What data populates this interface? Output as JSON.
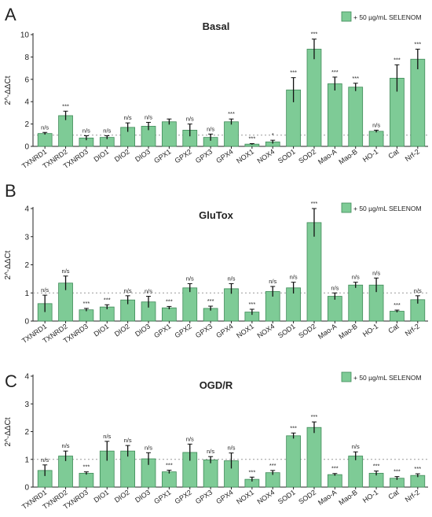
{
  "figure": {
    "legend_label": "+ 50 µg/mL SELENOM",
    "ylabel": "2^-ΔΔCt",
    "bar_color": "#7ecb96",
    "bar_edge": "#3f8a58",
    "reference_line": 1
  },
  "chart_data": [
    {
      "type": "bar",
      "panel_label": "A",
      "title": "Basal",
      "ylabel": "2^-ΔΔCt",
      "ylim": [
        0,
        10
      ],
      "yticks": [
        0,
        2,
        4,
        6,
        8,
        10
      ],
      "grid": false,
      "legend": "top-right",
      "categories": [
        "TXNRD1",
        "TXNRD2",
        "TXNRD3",
        "DIO1",
        "DIO2",
        "DIO3",
        "GPX1",
        "GPX2",
        "GPX3",
        "GPX4",
        "NOX1",
        "NOX4",
        "SOD1",
        "SOD2",
        "Mao-A",
        "Mao-B",
        "HO-1",
        "Cat",
        "Nrf-2"
      ],
      "series": [
        {
          "name": "+ 50 µg/mL SELENOM",
          "values": [
            1.15,
            2.75,
            0.75,
            0.8,
            1.7,
            1.8,
            2.2,
            1.45,
            0.8,
            2.2,
            0.2,
            0.4,
            5.05,
            8.7,
            5.6,
            5.3,
            1.35,
            6.1,
            7.8
          ],
          "errors": [
            0.1,
            0.4,
            0.2,
            0.15,
            0.4,
            0.35,
            0.25,
            0.55,
            0.3,
            0.25,
            0.05,
            0.15,
            1.1,
            0.9,
            0.6,
            0.35,
            0.1,
            1.2,
            0.9
          ]
        }
      ],
      "annotations": [
        "n/s",
        "***",
        "n/s",
        "n/s",
        "n/s",
        "n/s",
        "",
        "n/s",
        "n/s",
        "***",
        "***",
        "*",
        "***",
        "***",
        "***",
        "***",
        "n/s",
        "***",
        "***"
      ]
    },
    {
      "type": "bar",
      "panel_label": "B",
      "title": "GluTox",
      "ylabel": "2^-ΔΔCt",
      "ylim": [
        0,
        4
      ],
      "yticks": [
        0,
        1,
        2,
        3,
        4
      ],
      "grid": false,
      "legend": "top-right",
      "categories": [
        "TXNRD1",
        "TXNRD2",
        "TXNRD3",
        "DIO1",
        "DIO2",
        "DIO3",
        "GPX1",
        "GPX2",
        "GPX3",
        "GPX4",
        "NOX1",
        "NOX4",
        "SOD1",
        "SOD2",
        "Mao-A",
        "Mao-B",
        "HO-1",
        "Cat",
        "Nrf-2"
      ],
      "series": [
        {
          "name": "+ 50 µg/mL SELENOM",
          "values": [
            0.62,
            1.35,
            0.4,
            0.5,
            0.75,
            0.68,
            0.47,
            1.18,
            0.45,
            1.15,
            0.32,
            1.05,
            1.18,
            3.5,
            0.88,
            1.28,
            1.28,
            0.35,
            0.76
          ],
          "errors": [
            0.3,
            0.25,
            0.05,
            0.08,
            0.15,
            0.2,
            0.05,
            0.15,
            0.08,
            0.18,
            0.1,
            0.18,
            0.2,
            0.5,
            0.12,
            0.1,
            0.25,
            0.04,
            0.14
          ]
        }
      ],
      "annotations": [
        "n/s",
        "n/s",
        "***",
        "***",
        "n/s",
        "n/s",
        "***",
        "n/s",
        "***",
        "n/s",
        "***",
        "n/s",
        "n/s",
        "***",
        "n/s",
        "n/s",
        "n/s",
        "***",
        "n/s"
      ]
    },
    {
      "type": "bar",
      "panel_label": "C",
      "title": "OGD/R",
      "ylabel": "2^-ΔΔCt",
      "ylim": [
        0,
        4
      ],
      "yticks": [
        0,
        1,
        2,
        3,
        4
      ],
      "grid": false,
      "legend": "top-right",
      "categories": [
        "TXNRD1",
        "TXNRD2",
        "TXNRD3",
        "DIO1",
        "DIO2",
        "DIO3",
        "GPX1",
        "GPX2",
        "GPX3",
        "GPX4",
        "NOX1",
        "NOX4",
        "SOD1",
        "SOD2",
        "Mao-A",
        "Mao-B",
        "HO-1",
        "Cat",
        "Nrf-2"
      ],
      "series": [
        {
          "name": "+ 50 µg/mL SELENOM",
          "values": [
            0.6,
            1.12,
            0.5,
            1.3,
            1.3,
            1.02,
            0.55,
            1.25,
            0.98,
            0.95,
            0.28,
            0.52,
            1.85,
            2.15,
            0.45,
            1.12,
            0.5,
            0.32,
            0.42
          ],
          "errors": [
            0.2,
            0.18,
            0.05,
            0.35,
            0.2,
            0.22,
            0.06,
            0.3,
            0.12,
            0.28,
            0.08,
            0.08,
            0.1,
            0.2,
            0.04,
            0.15,
            0.08,
            0.06,
            0.06
          ]
        }
      ],
      "annotations": [
        "n/s",
        "n/s",
        "***",
        "n/s",
        "n/s",
        "n/s",
        "***",
        "n/s",
        "n/s",
        "n/s",
        "***",
        "***",
        "***",
        "***",
        "***",
        "n/s",
        "***",
        "***",
        "***"
      ]
    }
  ]
}
